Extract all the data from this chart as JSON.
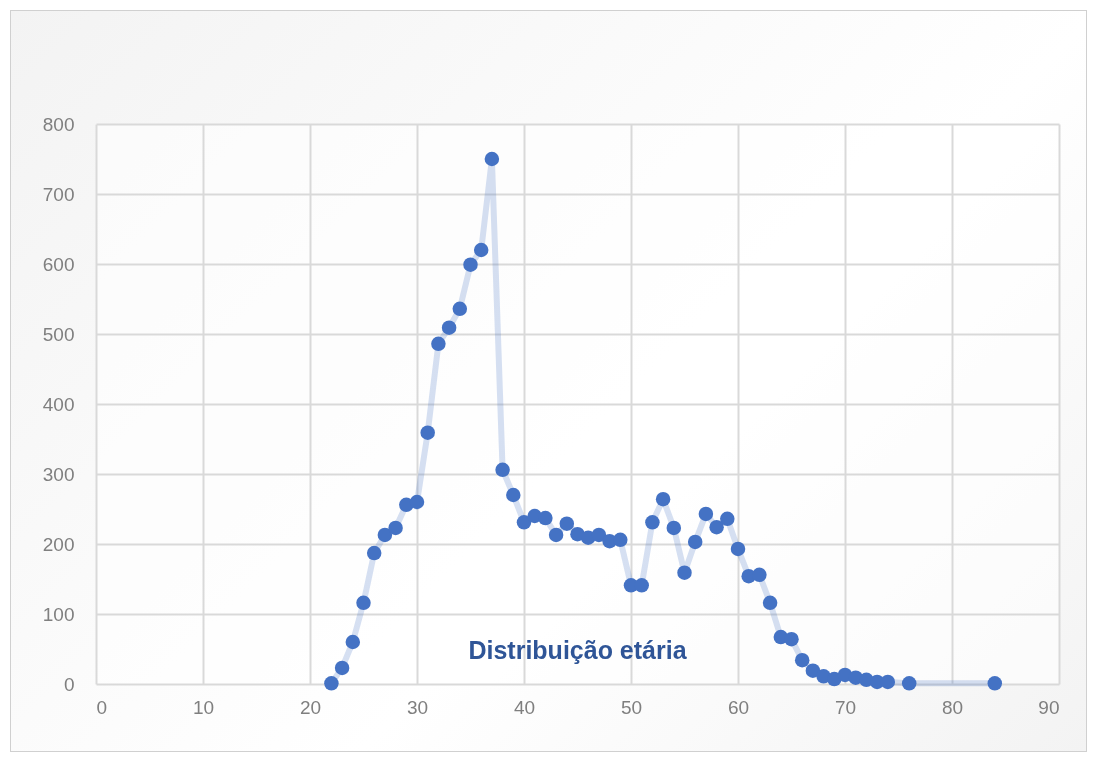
{
  "chart_data": {
    "type": "line",
    "title": "Distribuição etária",
    "x": [
      22,
      23,
      24,
      25,
      26,
      27,
      28,
      29,
      30,
      31,
      32,
      33,
      34,
      35,
      36,
      37,
      38,
      39,
      40,
      41,
      42,
      43,
      44,
      45,
      46,
      47,
      48,
      49,
      50,
      51,
      52,
      53,
      54,
      55,
      56,
      57,
      58,
      59,
      60,
      61,
      62,
      63,
      64,
      65,
      66,
      67,
      68,
      69,
      70,
      71,
      72,
      73,
      74,
      76,
      84
    ],
    "series": [
      {
        "color": "#4472c4",
        "values": [
          1,
          23,
          60,
          116,
          187,
          213,
          223,
          256,
          260,
          359,
          486,
          509,
          536,
          599,
          620,
          750,
          306,
          270,
          231,
          240,
          237,
          213,
          229,
          214,
          209,
          213,
          204,
          206,
          141,
          141,
          231,
          264,
          223,
          159,
          203,
          243,
          224,
          236,
          193,
          154,
          156,
          116,
          67,
          64,
          34,
          19,
          11,
          7,
          13,
          9,
          6,
          3,
          3,
          1,
          1
        ]
      }
    ],
    "xlim": [
      0,
      90
    ],
    "xticks": [
      0,
      10,
      20,
      30,
      40,
      50,
      60,
      70,
      80,
      90
    ],
    "ylim": [
      0,
      800
    ],
    "yticks": [
      0,
      100,
      200,
      300,
      400,
      500,
      600,
      700,
      800
    ],
    "grid": true,
    "marker": "circle",
    "line_style": "solid"
  }
}
